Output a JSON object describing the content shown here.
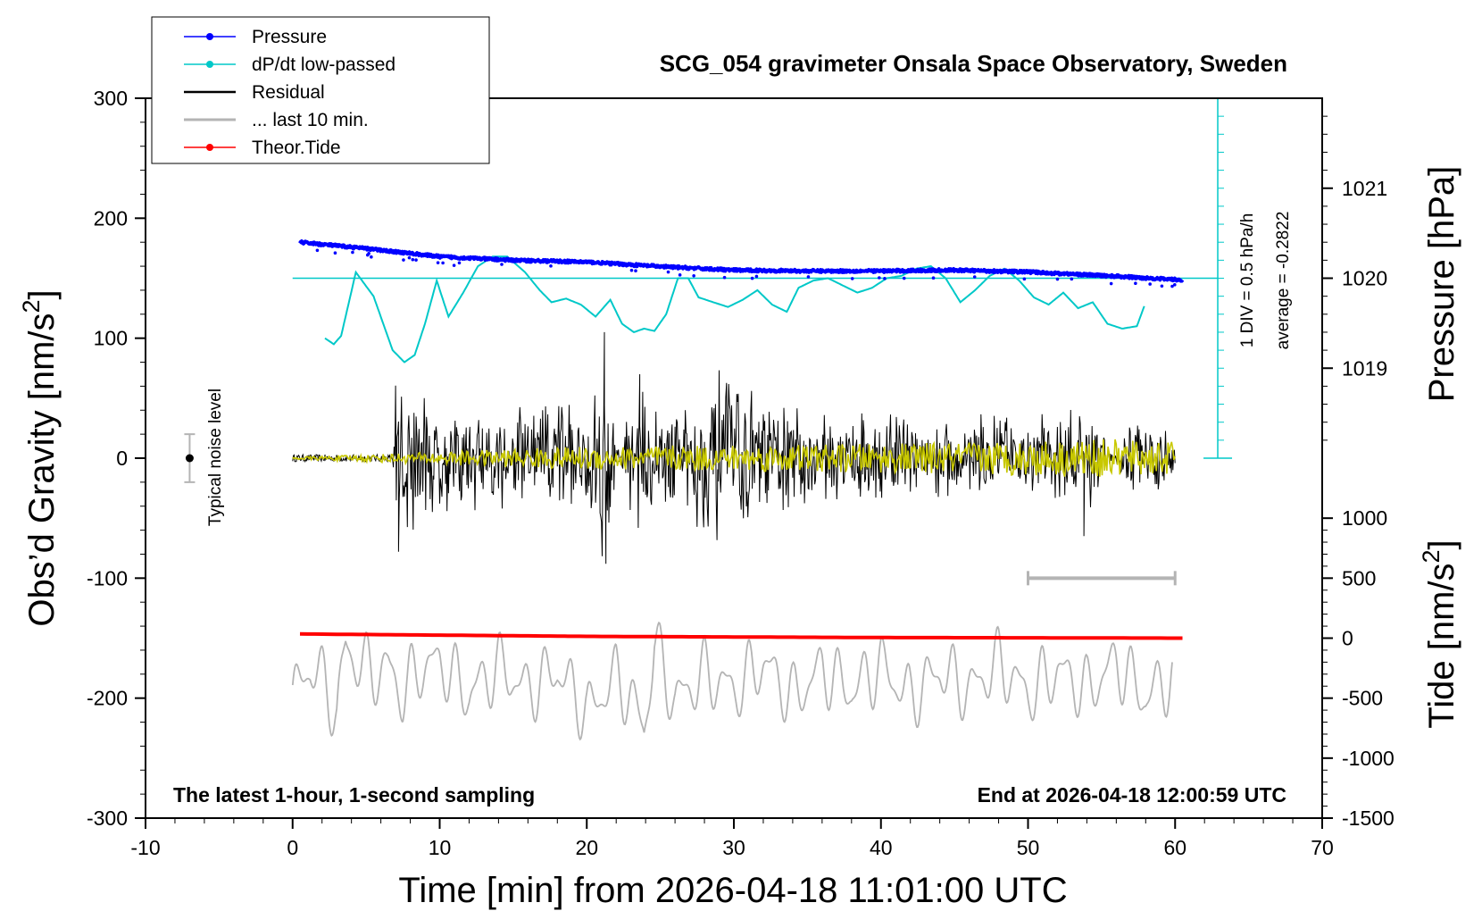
{
  "chart_data": {
    "type": "line",
    "title": "SCG_054 gravimeter Onsala Space Observatory, Sweden",
    "xlabel": "Time [min] from 2026-04-18 11:01:00 UTC",
    "ylabel_left": "Obs’d Gravity [nm/s",
    "ylabel_pressure": "Pressure [hPa]",
    "ylabel_tide": "Tide [nm/s",
    "superscript": "2",
    "xlim": [
      -10,
      70
    ],
    "ylim_left": [
      -300,
      300
    ],
    "ylim_pressure": [
      1018,
      1022
    ],
    "ylim_tide": [
      -1500,
      1500
    ],
    "x_ticks": [
      "-10",
      "0",
      "10",
      "20",
      "30",
      "40",
      "50",
      "60",
      "70"
    ],
    "y_ticks_left": [
      "300",
      "200",
      "100",
      "0",
      "-100",
      "-200",
      "-300"
    ],
    "y_ticks_pressure": [
      "1021",
      "1020",
      "1019"
    ],
    "y_ticks_tide": [
      "1000",
      "500",
      "0",
      "-500",
      "-1000",
      "-1500"
    ],
    "legend": [
      {
        "name": "Pressure",
        "color": "#0000ff",
        "marker": true
      },
      {
        "name": "dP/dt low-passed",
        "color": "#00c8c8",
        "marker": true
      },
      {
        "name": "Residual",
        "color": "#000000",
        "marker": false
      },
      {
        "name": "... last 10 min.",
        "color": "#b4b4b4",
        "marker": false
      },
      {
        "name": "Theor.Tide",
        "color": "#ff0000",
        "marker": true
      }
    ],
    "legend_position": "top-left",
    "annotation_left": "The latest 1-hour, 1-second sampling",
    "annotation_right": "End at 2026-04-18 12:00:59 UTC",
    "noise_label": "Typical noise level",
    "noise_level": {
      "x": -7,
      "center": 0,
      "half_range": 20
    },
    "dpdt_scale_label": "1 DIV = 0.5 hPa/h",
    "dpdt_average_label": "average = -0.2822",
    "dpdt_ref_level_hpa": 1020,
    "last10_bar_x": [
      50,
      60
    ],
    "last10_bar_y": -100,
    "series": [
      {
        "name": "Pressure",
        "color": "#0000ff",
        "unit": "hPa",
        "x": [
          0.5,
          5,
          10,
          15,
          20,
          25,
          30,
          35,
          40,
          45,
          50,
          55,
          60.5
        ],
        "y": [
          1020.4,
          1020.33,
          1020.24,
          1020.2,
          1020.18,
          1020.13,
          1020.09,
          1020.08,
          1020.08,
          1020.09,
          1020.07,
          1020.03,
          1019.98
        ]
      },
      {
        "name": "dP/dt low-passed",
        "color": "#00c8c8",
        "unit": "gravity-axis nm/s^2",
        "x": [
          2.2,
          2.8,
          3.3,
          4.3,
          5.5,
          6.8,
          7.6,
          8.3,
          9.0,
          9.8,
          10.6,
          11.6,
          12.6,
          13.6,
          14.6,
          15.8,
          16.8,
          17.6,
          18.6,
          19.6,
          20.6,
          21.6,
          22.4,
          23.2,
          23.9,
          24.6,
          25.4,
          26.2,
          26.9,
          27.6,
          28.6,
          29.6,
          30.6,
          31.6,
          32.6,
          33.6,
          34.4,
          35.4,
          36.4,
          37.4,
          38.4,
          39.4,
          40.4,
          41.4,
          42.4,
          43.4,
          44.4,
          45.4,
          46.4,
          47.4,
          48.4,
          49.4,
          50.4,
          51.4,
          52.4,
          53.4,
          54.4,
          55.4,
          56.4,
          57.4,
          58.0
        ],
        "y": [
          100,
          95,
          102,
          155,
          135,
          90,
          80,
          86,
          112,
          148,
          118,
          138,
          160,
          168,
          168,
          155,
          140,
          130,
          133,
          128,
          118,
          132,
          112,
          105,
          108,
          106,
          120,
          150,
          150,
          134,
          130,
          126,
          132,
          140,
          128,
          122,
          142,
          148,
          150,
          144,
          138,
          142,
          150,
          152,
          158,
          160,
          150,
          130,
          140,
          152,
          158,
          148,
          134,
          128,
          138,
          125,
          130,
          112,
          108,
          110,
          130
        ]
      },
      {
        "name": "Residual",
        "color": "#000000",
        "unit": "nm/s^2",
        "x": [
          0,
          6.8,
          7.0,
          7.5,
          8.0,
          9.0,
          10.0,
          12.0,
          14.0,
          16.0,
          18.0,
          20.0,
          21.2,
          21.3,
          23.0,
          26.0,
          29.0,
          32.0,
          35.0,
          40.0,
          45.0,
          50.0,
          53.8,
          54.0,
          57.0,
          60.0
        ],
        "y_envelope": [
          3,
          3,
          75,
          80,
          70,
          65,
          55,
          50,
          55,
          50,
          55,
          50,
          105,
          -90,
          65,
          55,
          75,
          55,
          45,
          40,
          40,
          40,
          50,
          -65,
          40,
          25
        ]
      },
      {
        "name": "... last 10 min.",
        "color": "#b4b4b4",
        "unit": "nm/s^2",
        "x": [
          0,
          1.2,
          2.2,
          3.0,
          3.6,
          4.4,
          5.5,
          6.5,
          7.5,
          8.5,
          10.0,
          12.0,
          14.0,
          16.0,
          18.0,
          20.0,
          22.0,
          23.0,
          23.9,
          24.6,
          26.0,
          28.0,
          30.0,
          32.0,
          34.0,
          36.0,
          38.0,
          40.0,
          42.0,
          44.0,
          46.0,
          48.0,
          50.0,
          52.0,
          54.0,
          56.0,
          58.0,
          59.8
        ],
        "y": [
          -208,
          -165,
          -190,
          -232,
          -140,
          -160,
          -175,
          -168,
          -205,
          -170,
          -160,
          -205,
          -165,
          -200,
          -170,
          -230,
          -180,
          -210,
          -253,
          -135,
          -215,
          -175,
          -200,
          -160,
          -210,
          -170,
          -200,
          -165,
          -210,
          -170,
          -200,
          -160,
          -205,
          -170,
          -200,
          -160,
          -210,
          -178
        ]
      },
      {
        "name": "Theor.Tide",
        "color": "#ff0000",
        "unit": "nm/s^2 (tide axis)",
        "x": [
          0.5,
          10,
          20,
          30,
          40,
          50,
          60.5
        ],
        "y": [
          35,
          25,
          15,
          10,
          5,
          3,
          0
        ]
      },
      {
        "name": "Residual low-passed (yellow)",
        "color": "#c8c800",
        "unit": "nm/s^2",
        "x": [
          0,
          7,
          20,
          40,
          55,
          60
        ],
        "y_envelope": [
          1,
          4,
          10,
          12,
          16,
          14
        ]
      }
    ]
  }
}
